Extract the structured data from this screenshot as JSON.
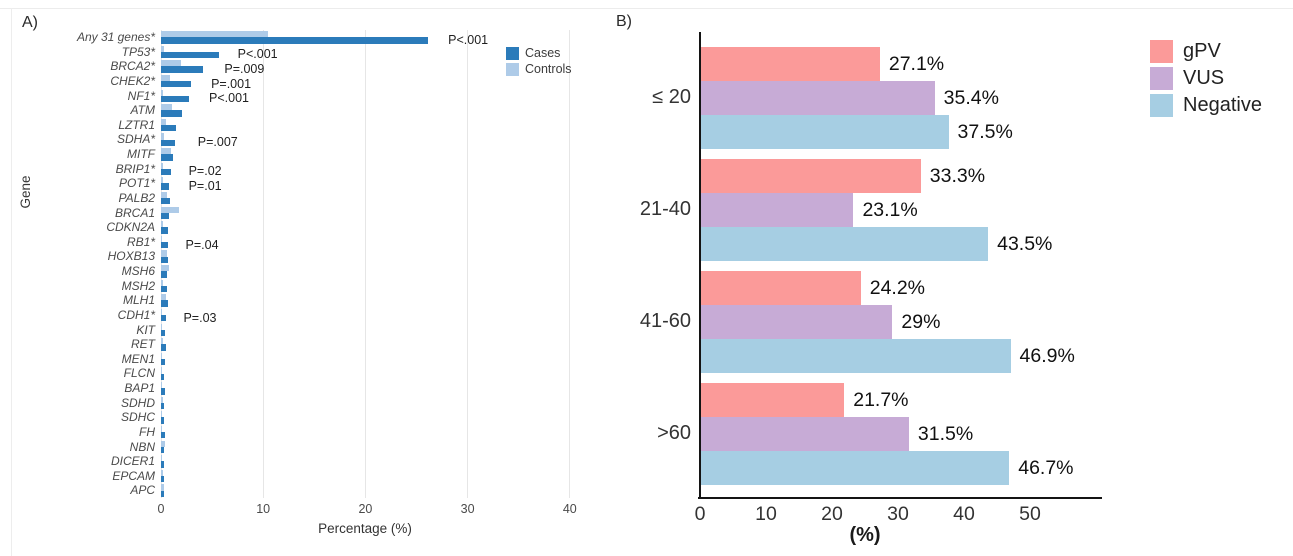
{
  "figure": {
    "background": "#ffffff"
  },
  "chart_data": [
    {
      "id": "panel_a",
      "panel_label": "A)",
      "type": "bar",
      "orientation": "horizontal",
      "title": "",
      "xlabel": "Percentage (%)",
      "ylabel": "Gene",
      "xlim": [
        0,
        44
      ],
      "xticks": [
        0,
        10,
        20,
        30,
        40
      ],
      "grid": true,
      "legend": {
        "position": "upper-right-inside",
        "entries": [
          {
            "label": "Cases",
            "color": "#2b7bba"
          },
          {
            "label": "Controls",
            "color": "#aecbe8"
          }
        ]
      },
      "categories": [
        "Any 31 genes*",
        "TP53*",
        "BRCA2*",
        "CHEK2*",
        "NF1*",
        "ATM",
        "LZTR1",
        "SDHA*",
        "MITF",
        "BRIP1*",
        "POT1*",
        "PALB2",
        "BRCA1",
        "CDKN2A",
        "RB1*",
        "HOXB13",
        "MSH6",
        "MSH2",
        "MLH1",
        "CDH1*",
        "KIT",
        "RET",
        "MEN1",
        "FLCN",
        "BAP1",
        "SDHD",
        "SDHC",
        "FH",
        "NBN",
        "DICER1",
        "EPCAM",
        "APC"
      ],
      "series": [
        {
          "name": "Cases",
          "color": "#2b7bba",
          "values": [
            26.1,
            5.7,
            4.1,
            2.9,
            2.7,
            2.1,
            1.5,
            1.4,
            1.2,
            1.0,
            0.8,
            0.9,
            0.8,
            0.7,
            0.65,
            0.7,
            0.6,
            0.6,
            0.7,
            0.45,
            0.4,
            0.45,
            0.35,
            0.3,
            0.35,
            0.3,
            0.3,
            0.35,
            0.25,
            0.3,
            0.25,
            0.3
          ]
        },
        {
          "name": "Controls",
          "color": "#aecbe8",
          "values": [
            10.5,
            0.25,
            2.0,
            0.9,
            0.15,
            1.1,
            0.5,
            0.25,
            1.0,
            0.2,
            0.15,
            0.6,
            1.8,
            0.15,
            0.1,
            0.6,
            0.8,
            0.15,
            0.45,
            0.1,
            0.1,
            0.15,
            0.1,
            0.1,
            0.1,
            0.15,
            0.1,
            0.1,
            0.35,
            0.1,
            0.15,
            0.3
          ]
        }
      ],
      "annotations": [
        {
          "category": "Any 31 genes*",
          "text": "P<.001",
          "x": 28.1
        },
        {
          "category": "TP53*",
          "text": "P<.001",
          "x": 7.5
        },
        {
          "category": "BRCA2*",
          "text": "P=.009",
          "x": 6.2
        },
        {
          "category": "CHEK2*",
          "text": "P=.001",
          "x": 4.9
        },
        {
          "category": "NF1*",
          "text": "P<.001",
          "x": 4.7
        },
        {
          "category": "SDHA*",
          "text": "P=.007",
          "x": 3.6
        },
        {
          "category": "BRIP1*",
          "text": "P=.02",
          "x": 2.7
        },
        {
          "category": "POT1*",
          "text": "P=.01",
          "x": 2.7
        },
        {
          "category": "RB1*",
          "text": "P=.04",
          "x": 2.4
        },
        {
          "category": "CDH1*",
          "text": "P=.03",
          "x": 2.2
        }
      ]
    },
    {
      "id": "panel_b",
      "panel_label": "B)",
      "type": "bar",
      "orientation": "horizontal",
      "title": "",
      "xlabel": "(%)",
      "ylabel": "",
      "xlim": [
        0,
        60
      ],
      "xticks": [
        0,
        10,
        20,
        30,
        40,
        50
      ],
      "grid": false,
      "legend": {
        "position": "upper-right-outside",
        "entries": [
          {
            "label": "gPV",
            "color": "#fb9a99"
          },
          {
            "label": "VUS",
            "color": "#c7abd6"
          },
          {
            "label": "Negative",
            "color": "#a6cee3"
          }
        ]
      },
      "categories": [
        "≤ 20",
        "21-40",
        "41-60",
        ">60"
      ],
      "series": [
        {
          "name": "gPV",
          "color": "#fb9a99",
          "values": [
            27.1,
            33.3,
            24.2,
            21.7
          ],
          "labels": [
            "27.1%",
            "33.3%",
            "24.2%",
            "21.7%"
          ]
        },
        {
          "name": "VUS",
          "color": "#c7abd6",
          "values": [
            35.4,
            23.1,
            29,
            31.5
          ],
          "labels": [
            "35.4%",
            "23.1%",
            "29%",
            "31.5%"
          ]
        },
        {
          "name": "Negative",
          "color": "#a6cee3",
          "values": [
            37.5,
            43.5,
            46.9,
            46.7
          ],
          "labels": [
            "37.5%",
            "43.5%",
            "46.9%",
            "46.7%"
          ]
        }
      ]
    }
  ]
}
